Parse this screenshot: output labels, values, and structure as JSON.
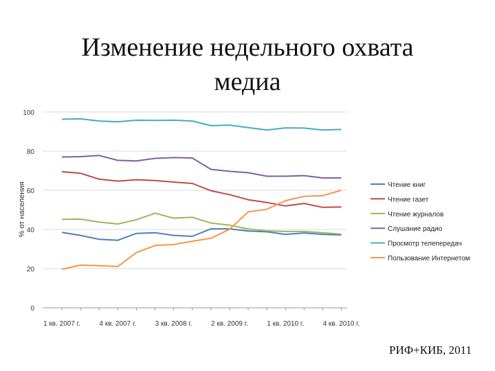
{
  "slide": {
    "title_line1": "Изменение недельного охвата",
    "title_line2": "медиа",
    "source": "РИФ+КИБ, 2011"
  },
  "chart_data": {
    "type": "line",
    "ylabel": "% от населения",
    "ylim": [
      0,
      100
    ],
    "yticks": [
      0,
      20,
      40,
      60,
      80,
      100
    ],
    "grid": true,
    "legend_position": "right",
    "x_tick_labels": [
      "1 кв. 2007 г.",
      "4 кв. 2007 г.",
      "3 кв. 2008 г.",
      "2 кв. 2009 г.",
      "1 кв. 2010 г.",
      "4 кв. 2010 г."
    ],
    "x_tick_index": [
      0,
      3,
      6,
      9,
      12,
      15
    ],
    "n_points": 16,
    "series": [
      {
        "name": "Чтение книг",
        "color": "#4a7ebb",
        "values": [
          38.5,
          37,
          35,
          34.5,
          38,
          38.3,
          37,
          36.5,
          40.3,
          40.3,
          39.2,
          38.8,
          37.5,
          38.2,
          37.5,
          37.2
        ]
      },
      {
        "name": "Чтение газет",
        "color": "#be4b48",
        "values": [
          69.5,
          68.7,
          65.7,
          64.7,
          65.4,
          65,
          64.2,
          63.5,
          59.8,
          57.8,
          55.2,
          53.8,
          52,
          53.3,
          51.3,
          51.5
        ]
      },
      {
        "name": "Чтение журналов",
        "color": "#98b954",
        "values": [
          45.2,
          45.3,
          43.8,
          42.8,
          45,
          48.3,
          45.8,
          46.2,
          43.3,
          42.2,
          40.2,
          39.3,
          39,
          39,
          38.3,
          37.6
        ]
      },
      {
        "name": "Слушание радио",
        "color": "#7d60a0",
        "values": [
          77,
          77.2,
          77.8,
          75.3,
          75,
          76.3,
          76.7,
          76.5,
          70.7,
          69.7,
          69,
          67.2,
          67.2,
          67.5,
          66.3,
          66.3
        ]
      },
      {
        "name": "Просмотр телепередач",
        "color": "#46aac5",
        "values": [
          96.3,
          96.5,
          95.4,
          95,
          95.8,
          95.7,
          95.8,
          95.4,
          93,
          93.3,
          92,
          90.8,
          91.9,
          91.8,
          90.8,
          91.1
        ]
      },
      {
        "name": "Пользование Интернетом",
        "color": "#f79646",
        "values": [
          19.7,
          21.8,
          21.5,
          21.1,
          28.2,
          31.8,
          32.3,
          34,
          35.5,
          40.1,
          49,
          50.3,
          54.7,
          56.9,
          57.3,
          60
        ]
      }
    ]
  }
}
